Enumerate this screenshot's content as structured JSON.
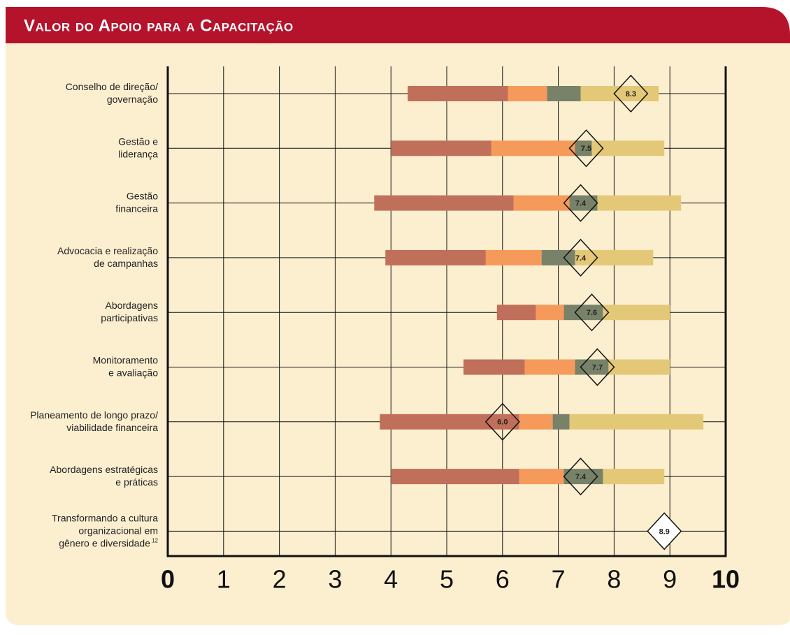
{
  "chart_data": {
    "type": "range_bar",
    "title": "Valor do Apoio para a Capacitação",
    "categories": [
      "Conselho de direção/\ngovernação",
      "Gestão e\nliderança",
      "Gestão\nfinanceira",
      "Advocacia e realização\nde campanhas",
      "Abordagens\nparticipativas",
      "Monitoramento\ne avaliação",
      "Planeamento de longo prazo/\nviabilidade financeira",
      "Abordagens estratégicas\ne práticas",
      "Transformando a cultura\norganizacional em\ngênero e diversidade"
    ],
    "category_notes": [
      null,
      null,
      null,
      null,
      null,
      null,
      null,
      null,
      "12"
    ],
    "bounds": [
      [
        4.3,
        6.1,
        6.8,
        7.4,
        8.8
      ],
      [
        4.0,
        5.8,
        7.3,
        7.6,
        8.9
      ],
      [
        3.7,
        6.2,
        7.2,
        7.7,
        9.2
      ],
      [
        3.9,
        5.7,
        6.7,
        7.3,
        8.7
      ],
      [
        5.9,
        6.6,
        7.1,
        7.8,
        9.0
      ],
      [
        5.3,
        6.4,
        7.3,
        7.9,
        9.0
      ],
      [
        3.8,
        6.3,
        6.9,
        7.2,
        9.6
      ],
      [
        4.0,
        6.3,
        7.1,
        7.8,
        8.9
      ],
      null
    ],
    "segment_colors": [
      "#c0705a",
      "#f59a5a",
      "#778268",
      "#e3c877"
    ],
    "means": [
      8.3,
      7.5,
      7.4,
      7.4,
      7.6,
      7.7,
      6,
      7.4,
      8.9
    ],
    "value_labels": [
      "8.3",
      "7.5",
      "7.4",
      "7.4",
      "7.6",
      "7.7",
      "6.0",
      "7.4",
      "8.9"
    ],
    "xlim": [
      0,
      10
    ],
    "xticks": [
      0,
      1,
      2,
      3,
      4,
      5,
      6,
      7,
      8,
      9,
      10
    ],
    "grid": true
  }
}
